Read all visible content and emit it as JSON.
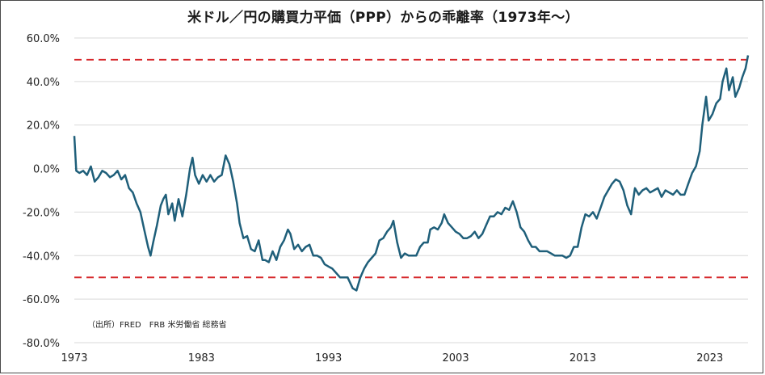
{
  "chart_data": {
    "type": "line",
    "title": "米ドル／円の購買力平価（PPP）からの乖離率（1973年〜）",
    "xlabel": "",
    "ylabel": "",
    "x_ticks": [
      "1973",
      "1983",
      "1993",
      "2003",
      "2013",
      "2023"
    ],
    "y_ticks": [
      "60.0%",
      "40.0%",
      "20.0%",
      "0.0%",
      "-20.0%",
      "-40.0%",
      "-60.0%",
      "-80.0%"
    ],
    "xlim": [
      1973,
      2026
    ],
    "ylim": [
      -80,
      60
    ],
    "grid": "horizontal",
    "reference_lines": [
      50,
      -50
    ],
    "source_note": "（出所）FRED　FRB 米労働省 総務省",
    "colors": {
      "line": "#1f5f7a",
      "reference": "#d6262a",
      "grid": "#d9d9d9"
    },
    "series": [
      {
        "values": [
          [
            1973.0,
            15
          ],
          [
            1973.15,
            -1
          ],
          [
            1973.4,
            -2
          ],
          [
            1973.7,
            -1
          ],
          [
            1974.0,
            -3
          ],
          [
            1974.3,
            1
          ],
          [
            1974.6,
            -6
          ],
          [
            1974.9,
            -4
          ],
          [
            1975.2,
            -1
          ],
          [
            1975.5,
            -2
          ],
          [
            1975.8,
            -4
          ],
          [
            1976.1,
            -3
          ],
          [
            1976.4,
            -1
          ],
          [
            1976.7,
            -5
          ],
          [
            1977.0,
            -3
          ],
          [
            1977.3,
            -9
          ],
          [
            1977.6,
            -11
          ],
          [
            1977.9,
            -16
          ],
          [
            1978.2,
            -20
          ],
          [
            1978.5,
            -28
          ],
          [
            1978.8,
            -36
          ],
          [
            1979.0,
            -40
          ],
          [
            1979.2,
            -34
          ],
          [
            1979.5,
            -26
          ],
          [
            1979.8,
            -17
          ],
          [
            1980.0,
            -14
          ],
          [
            1980.2,
            -12
          ],
          [
            1980.4,
            -21
          ],
          [
            1980.7,
            -16
          ],
          [
            1980.9,
            -24
          ],
          [
            1981.2,
            -14
          ],
          [
            1981.5,
            -22
          ],
          [
            1981.8,
            -12
          ],
          [
            1982.1,
            0
          ],
          [
            1982.3,
            5
          ],
          [
            1982.5,
            -3
          ],
          [
            1982.8,
            -7
          ],
          [
            1983.1,
            -3
          ],
          [
            1983.4,
            -6
          ],
          [
            1983.7,
            -3
          ],
          [
            1984.0,
            -6
          ],
          [
            1984.3,
            -4
          ],
          [
            1984.6,
            -3
          ],
          [
            1984.9,
            6
          ],
          [
            1985.2,
            2
          ],
          [
            1985.5,
            -6
          ],
          [
            1985.8,
            -16
          ],
          [
            1986.0,
            -25
          ],
          [
            1986.3,
            -32
          ],
          [
            1986.6,
            -31
          ],
          [
            1986.9,
            -37
          ],
          [
            1987.2,
            -38
          ],
          [
            1987.5,
            -33
          ],
          [
            1987.8,
            -42
          ],
          [
            1988.0,
            -42
          ],
          [
            1988.3,
            -43
          ],
          [
            1988.6,
            -38
          ],
          [
            1988.9,
            -42
          ],
          [
            1989.2,
            -36
          ],
          [
            1989.5,
            -33
          ],
          [
            1989.8,
            -28
          ],
          [
            1990.0,
            -30
          ],
          [
            1990.3,
            -37
          ],
          [
            1990.6,
            -35
          ],
          [
            1990.9,
            -38
          ],
          [
            1991.2,
            -36
          ],
          [
            1991.5,
            -35
          ],
          [
            1991.8,
            -40
          ],
          [
            1992.1,
            -40
          ],
          [
            1992.4,
            -41
          ],
          [
            1992.7,
            -44
          ],
          [
            1993.0,
            -45
          ],
          [
            1993.3,
            -46
          ],
          [
            1993.6,
            -48
          ],
          [
            1993.9,
            -50
          ],
          [
            1994.2,
            -50
          ],
          [
            1994.5,
            -50
          ],
          [
            1994.9,
            -55
          ],
          [
            1995.2,
            -56
          ],
          [
            1995.5,
            -50
          ],
          [
            1995.8,
            -46
          ],
          [
            1996.1,
            -43
          ],
          [
            1996.4,
            -41
          ],
          [
            1996.7,
            -39
          ],
          [
            1997.0,
            -33
          ],
          [
            1997.3,
            -32
          ],
          [
            1997.6,
            -29
          ],
          [
            1997.9,
            -27
          ],
          [
            1998.1,
            -24
          ],
          [
            1998.4,
            -34
          ],
          [
            1998.7,
            -41
          ],
          [
            1999.0,
            -39
          ],
          [
            1999.3,
            -40
          ],
          [
            1999.6,
            -40
          ],
          [
            1999.9,
            -40
          ],
          [
            2000.2,
            -36
          ],
          [
            2000.5,
            -34
          ],
          [
            2000.8,
            -34
          ],
          [
            2001.0,
            -28
          ],
          [
            2001.3,
            -27
          ],
          [
            2001.6,
            -28
          ],
          [
            2001.9,
            -25
          ],
          [
            2002.1,
            -21
          ],
          [
            2002.4,
            -25
          ],
          [
            2002.7,
            -27
          ],
          [
            2003.0,
            -29
          ],
          [
            2003.3,
            -30
          ],
          [
            2003.6,
            -32
          ],
          [
            2003.9,
            -32
          ],
          [
            2004.2,
            -31
          ],
          [
            2004.5,
            -29
          ],
          [
            2004.8,
            -32
          ],
          [
            2005.1,
            -30
          ],
          [
            2005.4,
            -26
          ],
          [
            2005.7,
            -22
          ],
          [
            2006.0,
            -22
          ],
          [
            2006.3,
            -20
          ],
          [
            2006.6,
            -21
          ],
          [
            2006.9,
            -18
          ],
          [
            2007.2,
            -19
          ],
          [
            2007.5,
            -15
          ],
          [
            2007.8,
            -20
          ],
          [
            2008.1,
            -27
          ],
          [
            2008.4,
            -29
          ],
          [
            2008.7,
            -33
          ],
          [
            2009.0,
            -36
          ],
          [
            2009.3,
            -36
          ],
          [
            2009.6,
            -38
          ],
          [
            2009.9,
            -38
          ],
          [
            2010.2,
            -38
          ],
          [
            2010.5,
            -39
          ],
          [
            2010.8,
            -40
          ],
          [
            2011.1,
            -40
          ],
          [
            2011.4,
            -40
          ],
          [
            2011.7,
            -41
          ],
          [
            2012.0,
            -40
          ],
          [
            2012.3,
            -36
          ],
          [
            2012.6,
            -36
          ],
          [
            2012.9,
            -27
          ],
          [
            2013.2,
            -21
          ],
          [
            2013.5,
            -22
          ],
          [
            2013.8,
            -20
          ],
          [
            2014.1,
            -23
          ],
          [
            2014.4,
            -18
          ],
          [
            2014.7,
            -13
          ],
          [
            2015.0,
            -10
          ],
          [
            2015.3,
            -7
          ],
          [
            2015.6,
            -5
          ],
          [
            2015.9,
            -6
          ],
          [
            2016.2,
            -10
          ],
          [
            2016.5,
            -17
          ],
          [
            2016.8,
            -21
          ],
          [
            2017.1,
            -9
          ],
          [
            2017.4,
            -12
          ],
          [
            2017.7,
            -10
          ],
          [
            2018.0,
            -9
          ],
          [
            2018.3,
            -11
          ],
          [
            2018.6,
            -10
          ],
          [
            2018.9,
            -9
          ],
          [
            2019.2,
            -13
          ],
          [
            2019.5,
            -10
          ],
          [
            2019.8,
            -11
          ],
          [
            2020.1,
            -12
          ],
          [
            2020.4,
            -10
          ],
          [
            2020.7,
            -12
          ],
          [
            2021.0,
            -12
          ],
          [
            2021.3,
            -7
          ],
          [
            2021.6,
            -2
          ],
          [
            2021.9,
            1
          ],
          [
            2022.2,
            8
          ],
          [
            2022.4,
            20
          ],
          [
            2022.7,
            33
          ],
          [
            2022.9,
            22
          ],
          [
            2023.2,
            25
          ],
          [
            2023.5,
            30
          ],
          [
            2023.8,
            32
          ],
          [
            2024.0,
            40
          ],
          [
            2024.3,
            46
          ],
          [
            2024.5,
            36
          ],
          [
            2024.8,
            42
          ],
          [
            2025.0,
            33
          ],
          [
            2025.3,
            37
          ],
          [
            2025.55,
            42
          ],
          [
            2025.8,
            46
          ],
          [
            2026.0,
            52
          ]
        ]
      }
    ]
  }
}
